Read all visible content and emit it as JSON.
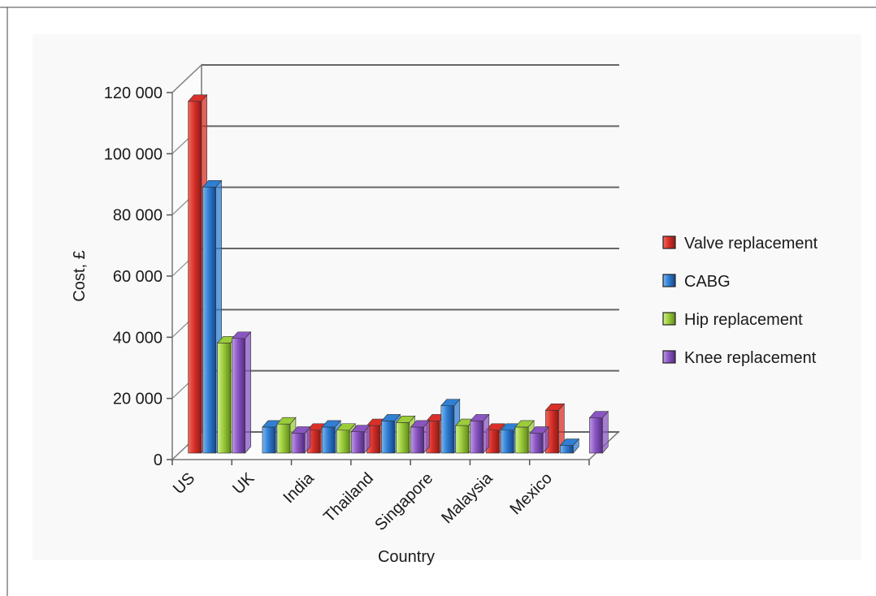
{
  "chart_data": {
    "type": "bar",
    "title": "",
    "xlabel": "Country",
    "ylabel": "Cost, £",
    "ylim": [
      0,
      120000
    ],
    "yticks": [
      0,
      20000,
      40000,
      60000,
      80000,
      100000,
      120000
    ],
    "ytick_labels": [
      "0",
      "20 000",
      "40 000",
      "60 000",
      "80 000",
      "100 000",
      "120 000"
    ],
    "grid": true,
    "legend_position": "right",
    "categories": [
      "US",
      "UK",
      "India",
      "Thailand",
      "Singapore",
      "Malaysia",
      "Mexico"
    ],
    "series": [
      {
        "name": "Valve replacement",
        "color": "#d9302a",
        "values": [
          115000,
          null,
          7500,
          9000,
          10500,
          7500,
          14000
        ]
      },
      {
        "name": "CABG",
        "color": "#2f7fd4",
        "values": [
          87000,
          8500,
          8500,
          10500,
          15500,
          7500,
          2500
        ]
      },
      {
        "name": "Hip replacement",
        "color": "#9ccc3a",
        "values": [
          36000,
          9500,
          7500,
          10000,
          9000,
          8500,
          null
        ]
      },
      {
        "name": "Knee replacement",
        "color": "#8a55c2",
        "values": [
          37500,
          6500,
          7000,
          8500,
          10500,
          6500,
          11500
        ]
      }
    ]
  }
}
